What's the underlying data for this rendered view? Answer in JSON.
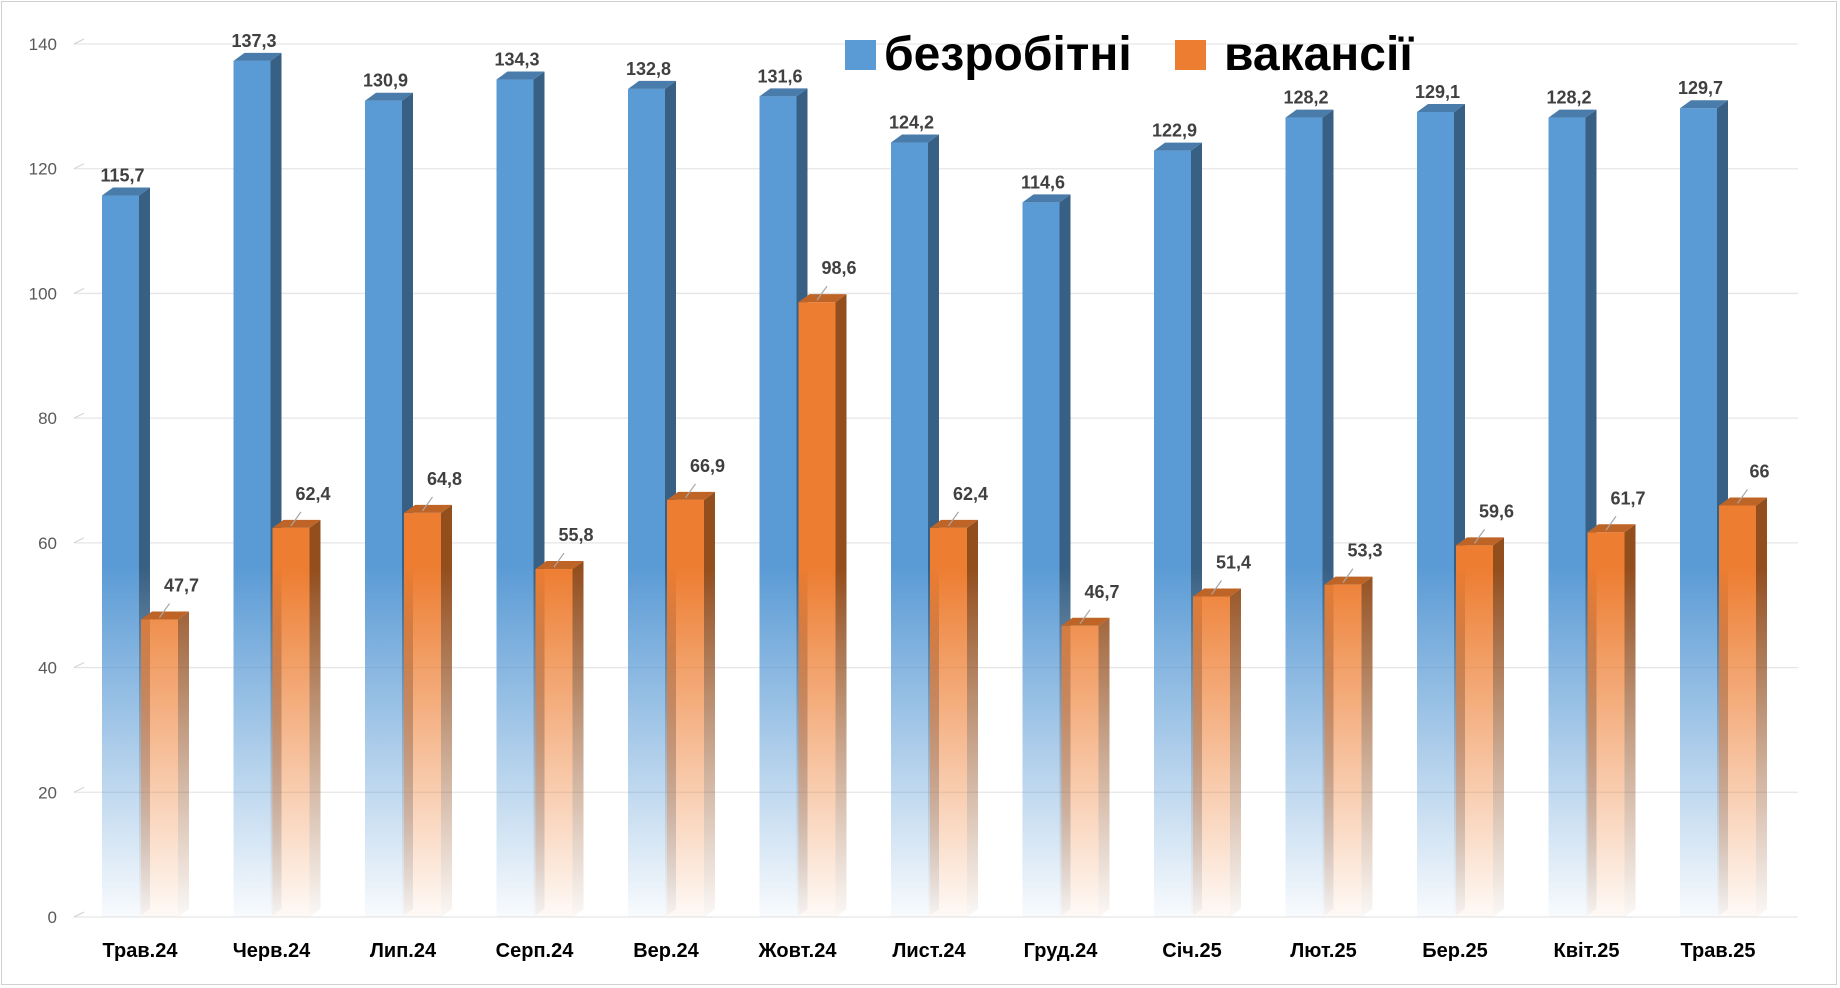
{
  "chart_data": {
    "type": "bar",
    "categories": [
      "Трав.24",
      "Черв.24",
      "Лип.24",
      "Серп.24",
      "Вер.24",
      "Жовт.24",
      "Лист.24",
      "Груд.24",
      "Січ.25",
      "Лют.25",
      "Бер.25",
      "Квіт.25",
      "Трав.25"
    ],
    "series": [
      {
        "name": "безробітні",
        "color": "#5B9BD5",
        "values": [
          115.7,
          137.3,
          130.9,
          134.3,
          132.8,
          131.6,
          124.2,
          114.6,
          122.9,
          128.2,
          129.1,
          128.2,
          129.7
        ],
        "labels": [
          "115,7",
          "137,3",
          "130,9",
          "134,3",
          "132,8",
          "131,6",
          "124,2",
          "114,6",
          "122,9",
          "128,2",
          "129,1",
          "128,2",
          "129,7"
        ]
      },
      {
        "name": "вакансії",
        "color": "#ED7D31",
        "values": [
          47.7,
          62.4,
          64.8,
          55.8,
          66.9,
          98.6,
          62.4,
          46.7,
          51.4,
          53.3,
          59.6,
          61.7,
          66
        ],
        "labels": [
          "47,7",
          "62,4",
          "64,8",
          "55,8",
          "66,9",
          "98,6",
          "62,4",
          "46,7",
          "51,4",
          "53,3",
          "59,6",
          "61,7",
          "66"
        ]
      }
    ],
    "ylim": [
      0,
      140
    ],
    "yticks": [
      "0",
      "20",
      "40",
      "60",
      "80",
      "100",
      "120",
      "140"
    ],
    "grid": true,
    "legend_position": "top-right",
    "style": "3d-gradient-columns"
  }
}
